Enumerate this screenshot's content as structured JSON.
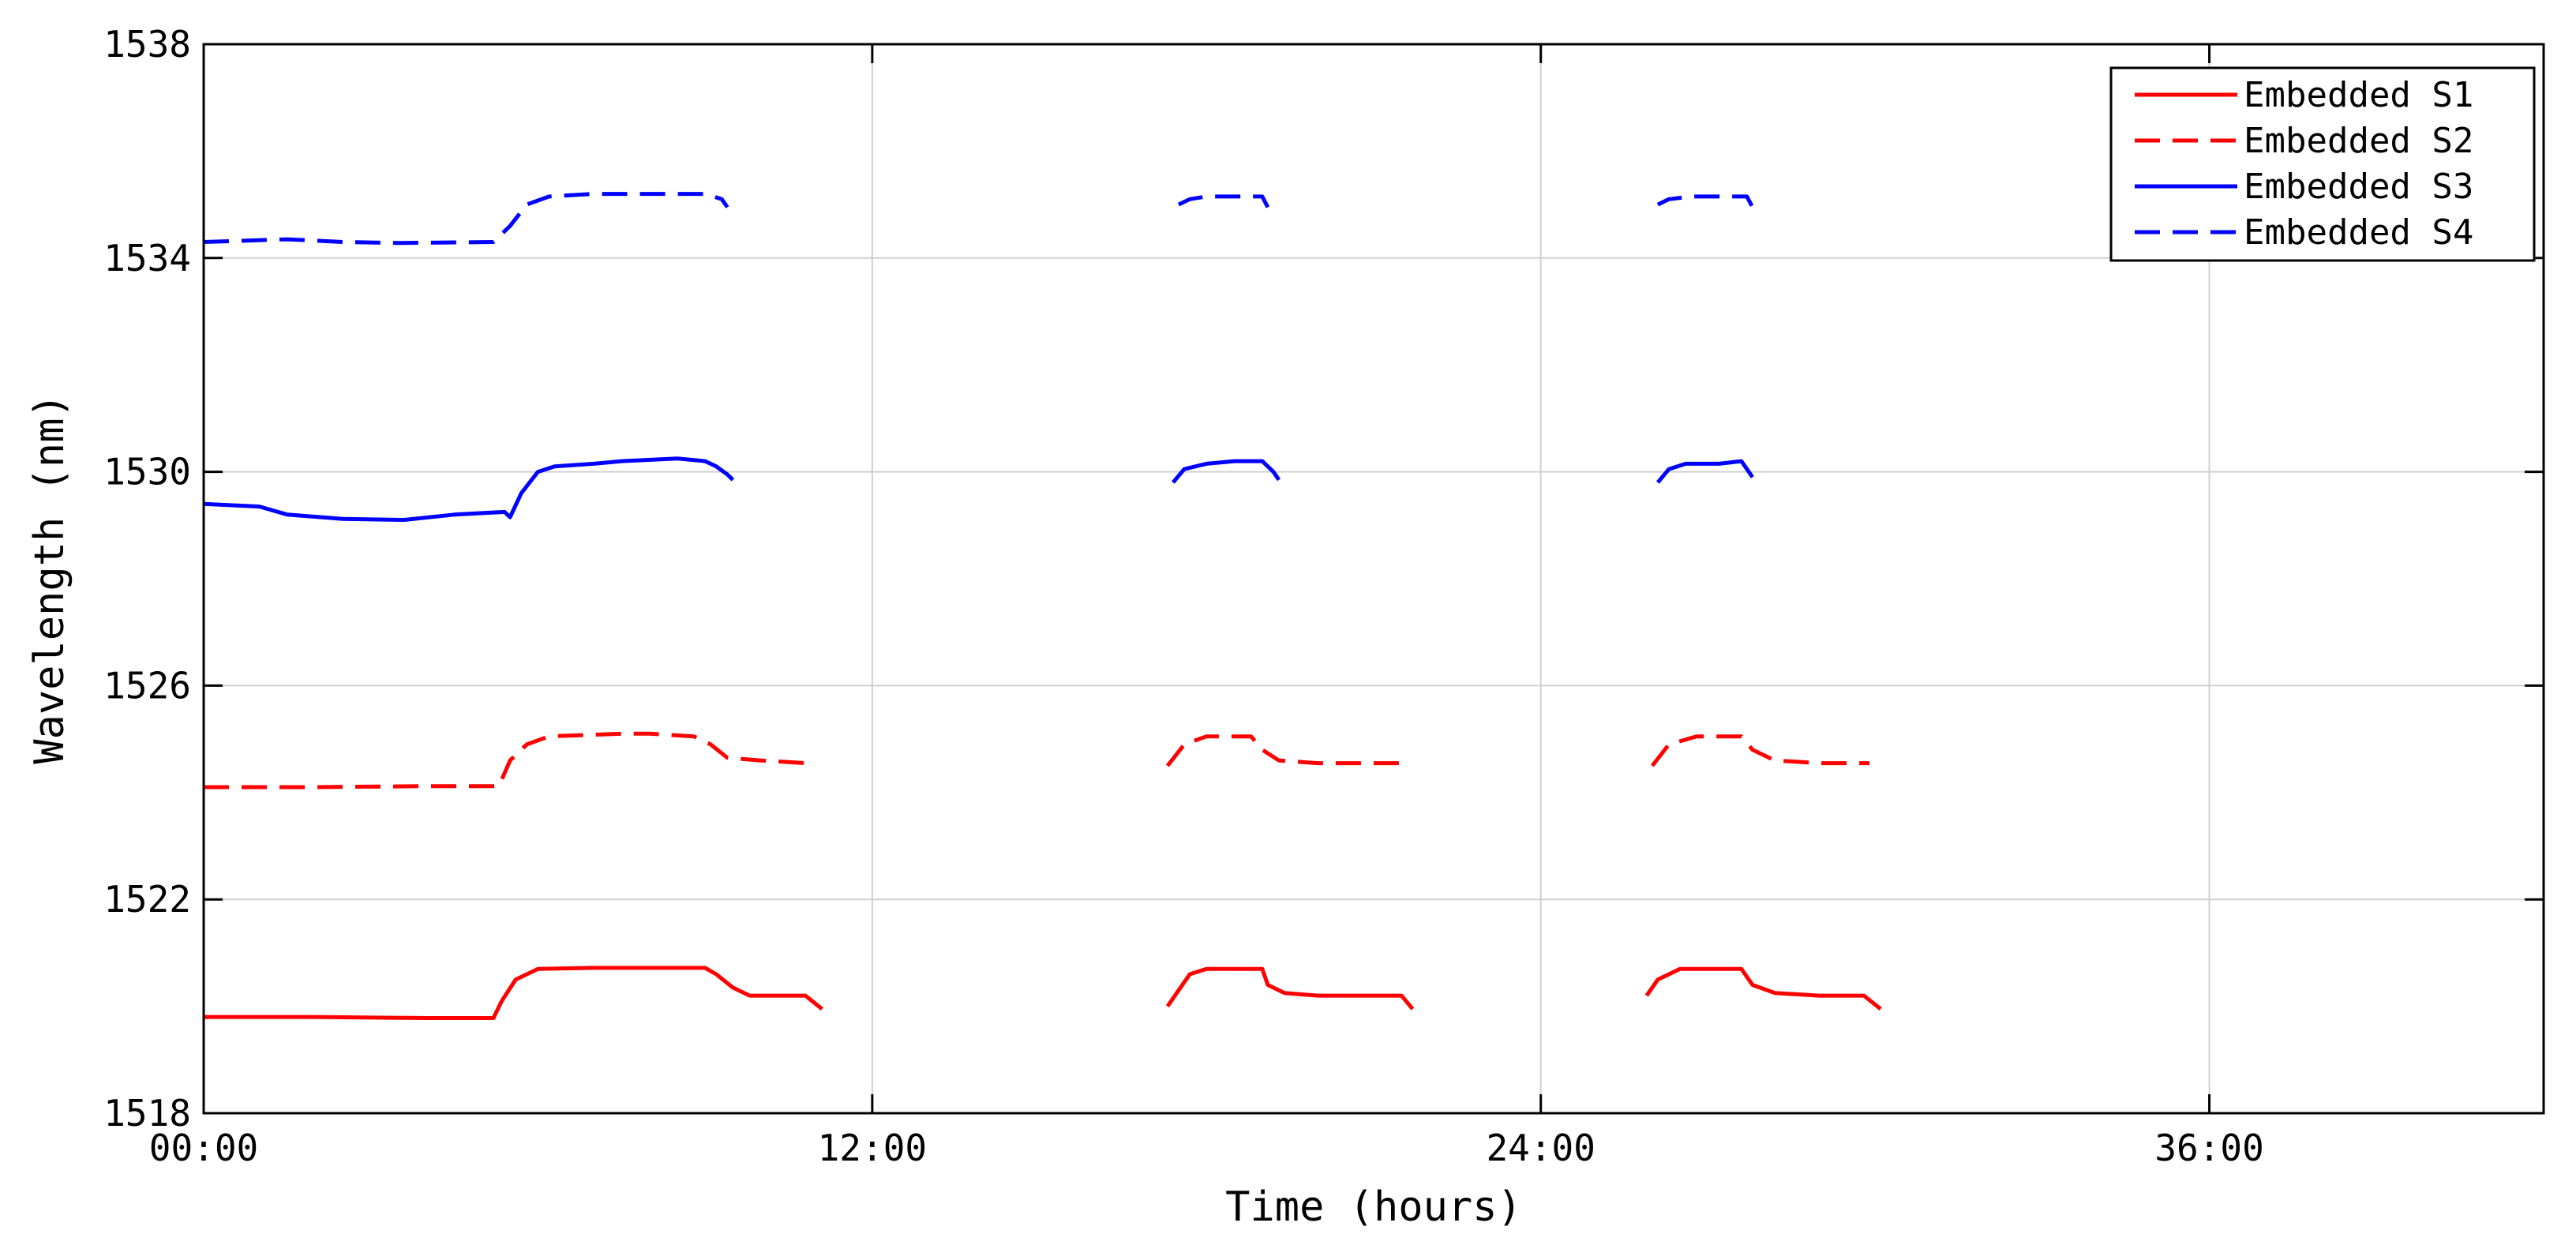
{
  "chart_data": {
    "type": "line",
    "title": "",
    "xlabel": "Time (hours)",
    "ylabel": "Wavelength (nm)",
    "xlim": [
      0,
      42
    ],
    "ylim": [
      1518,
      1538
    ],
    "x_ticks": [
      {
        "value": 0,
        "label": "00:00"
      },
      {
        "value": 12,
        "label": "12:00"
      },
      {
        "value": 24,
        "label": "24:00"
      },
      {
        "value": 36,
        "label": "36:00"
      }
    ],
    "y_ticks": [
      {
        "value": 1518,
        "label": "1518"
      },
      {
        "value": 1522,
        "label": "1522"
      },
      {
        "value": 1526,
        "label": "1526"
      },
      {
        "value": 1530,
        "label": "1530"
      },
      {
        "value": 1534,
        "label": "1534"
      },
      {
        "value": 1538,
        "label": "1538"
      }
    ],
    "grid": true,
    "legend_position": "top-right",
    "series": [
      {
        "name": "Embedded S1",
        "color": "#ff0000",
        "dash": "solid",
        "segments": [
          [
            [
              0,
              1519.8
            ],
            [
              2,
              1519.8
            ],
            [
              4,
              1519.78
            ],
            [
              5.2,
              1519.78
            ],
            [
              5.35,
              1520.1
            ],
            [
              5.6,
              1520.5
            ],
            [
              6,
              1520.7
            ],
            [
              7,
              1520.72
            ],
            [
              8,
              1520.72
            ],
            [
              9,
              1520.72
            ],
            [
              9.2,
              1520.6
            ],
            [
              9.5,
              1520.35
            ],
            [
              9.8,
              1520.2
            ],
            [
              10.5,
              1520.2
            ],
            [
              10.8,
              1520.2
            ],
            [
              11.1,
              1519.95
            ]
          ],
          [
            [
              17.3,
              1520.0
            ],
            [
              17.5,
              1520.3
            ],
            [
              17.7,
              1520.6
            ],
            [
              18,
              1520.7
            ],
            [
              18.5,
              1520.7
            ],
            [
              19,
              1520.7
            ],
            [
              19.1,
              1520.4
            ],
            [
              19.4,
              1520.25
            ],
            [
              20,
              1520.2
            ],
            [
              21,
              1520.2
            ],
            [
              21.5,
              1520.2
            ],
            [
              21.7,
              1519.95
            ]
          ],
          [
            [
              25.9,
              1520.2
            ],
            [
              26.1,
              1520.5
            ],
            [
              26.5,
              1520.7
            ],
            [
              27,
              1520.7
            ],
            [
              27.6,
              1520.7
            ],
            [
              27.8,
              1520.4
            ],
            [
              28.2,
              1520.25
            ],
            [
              29,
              1520.2
            ],
            [
              29.8,
              1520.2
            ],
            [
              30.1,
              1519.95
            ]
          ]
        ]
      },
      {
        "name": "Embedded S2",
        "color": "#ff0000",
        "dash": "dashed",
        "segments": [
          [
            [
              0,
              1524.1
            ],
            [
              2,
              1524.1
            ],
            [
              4,
              1524.12
            ],
            [
              5.3,
              1524.12
            ],
            [
              5.5,
              1524.6
            ],
            [
              5.8,
              1524.9
            ],
            [
              6.2,
              1525.05
            ],
            [
              7.5,
              1525.1
            ],
            [
              8,
              1525.1
            ],
            [
              8.8,
              1525.05
            ],
            [
              9.1,
              1524.9
            ],
            [
              9.4,
              1524.65
            ],
            [
              10,
              1524.6
            ],
            [
              10.8,
              1524.55
            ]
          ],
          [
            [
              17.3,
              1524.5
            ],
            [
              17.6,
              1524.9
            ],
            [
              18,
              1525.05
            ],
            [
              18.8,
              1525.05
            ],
            [
              19,
              1524.8
            ],
            [
              19.3,
              1524.6
            ],
            [
              20,
              1524.55
            ],
            [
              21.5,
              1524.55
            ]
          ],
          [
            [
              26,
              1524.5
            ],
            [
              26.3,
              1524.9
            ],
            [
              26.8,
              1525.05
            ],
            [
              27.6,
              1525.05
            ],
            [
              27.8,
              1524.8
            ],
            [
              28.2,
              1524.6
            ],
            [
              29,
              1524.55
            ],
            [
              29.9,
              1524.55
            ]
          ]
        ]
      },
      {
        "name": "Embedded S3",
        "color": "#0000ff",
        "dash": "solid",
        "segments": [
          [
            [
              0,
              1529.4
            ],
            [
              1,
              1529.35
            ],
            [
              1.5,
              1529.2
            ],
            [
              2.5,
              1529.12
            ],
            [
              3.6,
              1529.1
            ],
            [
              4.5,
              1529.2
            ],
            [
              5.4,
              1529.25
            ],
            [
              5.5,
              1529.15
            ],
            [
              5.7,
              1529.6
            ],
            [
              6,
              1530
            ],
            [
              6.3,
              1530.1
            ],
            [
              7,
              1530.15
            ],
            [
              7.5,
              1530.2
            ],
            [
              8.5,
              1530.25
            ],
            [
              9,
              1530.2
            ],
            [
              9.2,
              1530.1
            ],
            [
              9.4,
              1529.95
            ],
            [
              9.5,
              1529.85
            ]
          ],
          [
            [
              17.4,
              1529.8
            ],
            [
              17.6,
              1530.05
            ],
            [
              18,
              1530.15
            ],
            [
              18.5,
              1530.2
            ],
            [
              19,
              1530.2
            ],
            [
              19.2,
              1530
            ],
            [
              19.3,
              1529.85
            ]
          ],
          [
            [
              26.1,
              1529.8
            ],
            [
              26.3,
              1530.05
            ],
            [
              26.6,
              1530.15
            ],
            [
              27.2,
              1530.15
            ],
            [
              27.6,
              1530.2
            ],
            [
              27.7,
              1530.05
            ],
            [
              27.8,
              1529.9
            ]
          ]
        ]
      },
      {
        "name": "Embedded S4",
        "color": "#0000ff",
        "dash": "dashed",
        "segments": [
          [
            [
              0,
              1534.3
            ],
            [
              1.5,
              1534.35
            ],
            [
              2.5,
              1534.3
            ],
            [
              3.5,
              1534.28
            ],
            [
              5.2,
              1534.3
            ],
            [
              5.5,
              1534.6
            ],
            [
              5.8,
              1535
            ],
            [
              6.2,
              1535.15
            ],
            [
              7,
              1535.2
            ],
            [
              8,
              1535.2
            ],
            [
              9,
              1535.2
            ],
            [
              9.3,
              1535.1
            ],
            [
              9.4,
              1534.95
            ]
          ],
          [
            [
              17.5,
              1535.0
            ],
            [
              17.7,
              1535.1
            ],
            [
              18,
              1535.15
            ],
            [
              18.5,
              1535.15
            ],
            [
              19,
              1535.15
            ],
            [
              19.1,
              1534.95
            ]
          ],
          [
            [
              26.1,
              1535.0
            ],
            [
              26.3,
              1535.1
            ],
            [
              26.7,
              1535.15
            ],
            [
              27.3,
              1535.15
            ],
            [
              27.7,
              1535.15
            ],
            [
              27.8,
              1534.95
            ]
          ]
        ]
      }
    ]
  }
}
